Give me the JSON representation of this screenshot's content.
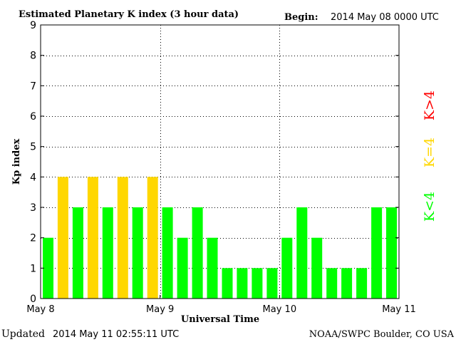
{
  "chart_data": {
    "type": "bar",
    "title": "Estimated Planetary K index (3 hour data)",
    "begin_label": "Begin:",
    "begin_value": "2014 May 08 0000 UTC",
    "xlabel": "Universal Time",
    "ylabel": "Kp index",
    "ylim": [
      0,
      9
    ],
    "yticks": [
      "0",
      "1",
      "2",
      "3",
      "4",
      "5",
      "6",
      "7",
      "8",
      "9"
    ],
    "xticks": [
      "May 8",
      "May 9",
      "May 10",
      "May 11"
    ],
    "values": [
      2,
      4,
      3,
      4,
      3,
      4,
      3,
      4,
      3,
      2,
      3,
      2,
      1,
      1,
      1,
      1,
      2,
      3,
      2,
      1,
      1,
      1,
      3,
      3
    ],
    "grid": true,
    "legend": [
      {
        "label": "K<4",
        "color": "#00ff00"
      },
      {
        "label": "K=4",
        "color": "#ffd700"
      },
      {
        "label": "K>4",
        "color": "#ff0000"
      }
    ],
    "colors": {
      "low": "#00ff00",
      "equal": "#ffd700",
      "high": "#ff0000"
    }
  },
  "footer": {
    "updated_label": "Updated",
    "updated_value": "2014 May 11 02:55:11 UTC",
    "source": "NOAA/SWPC Boulder, CO USA"
  }
}
